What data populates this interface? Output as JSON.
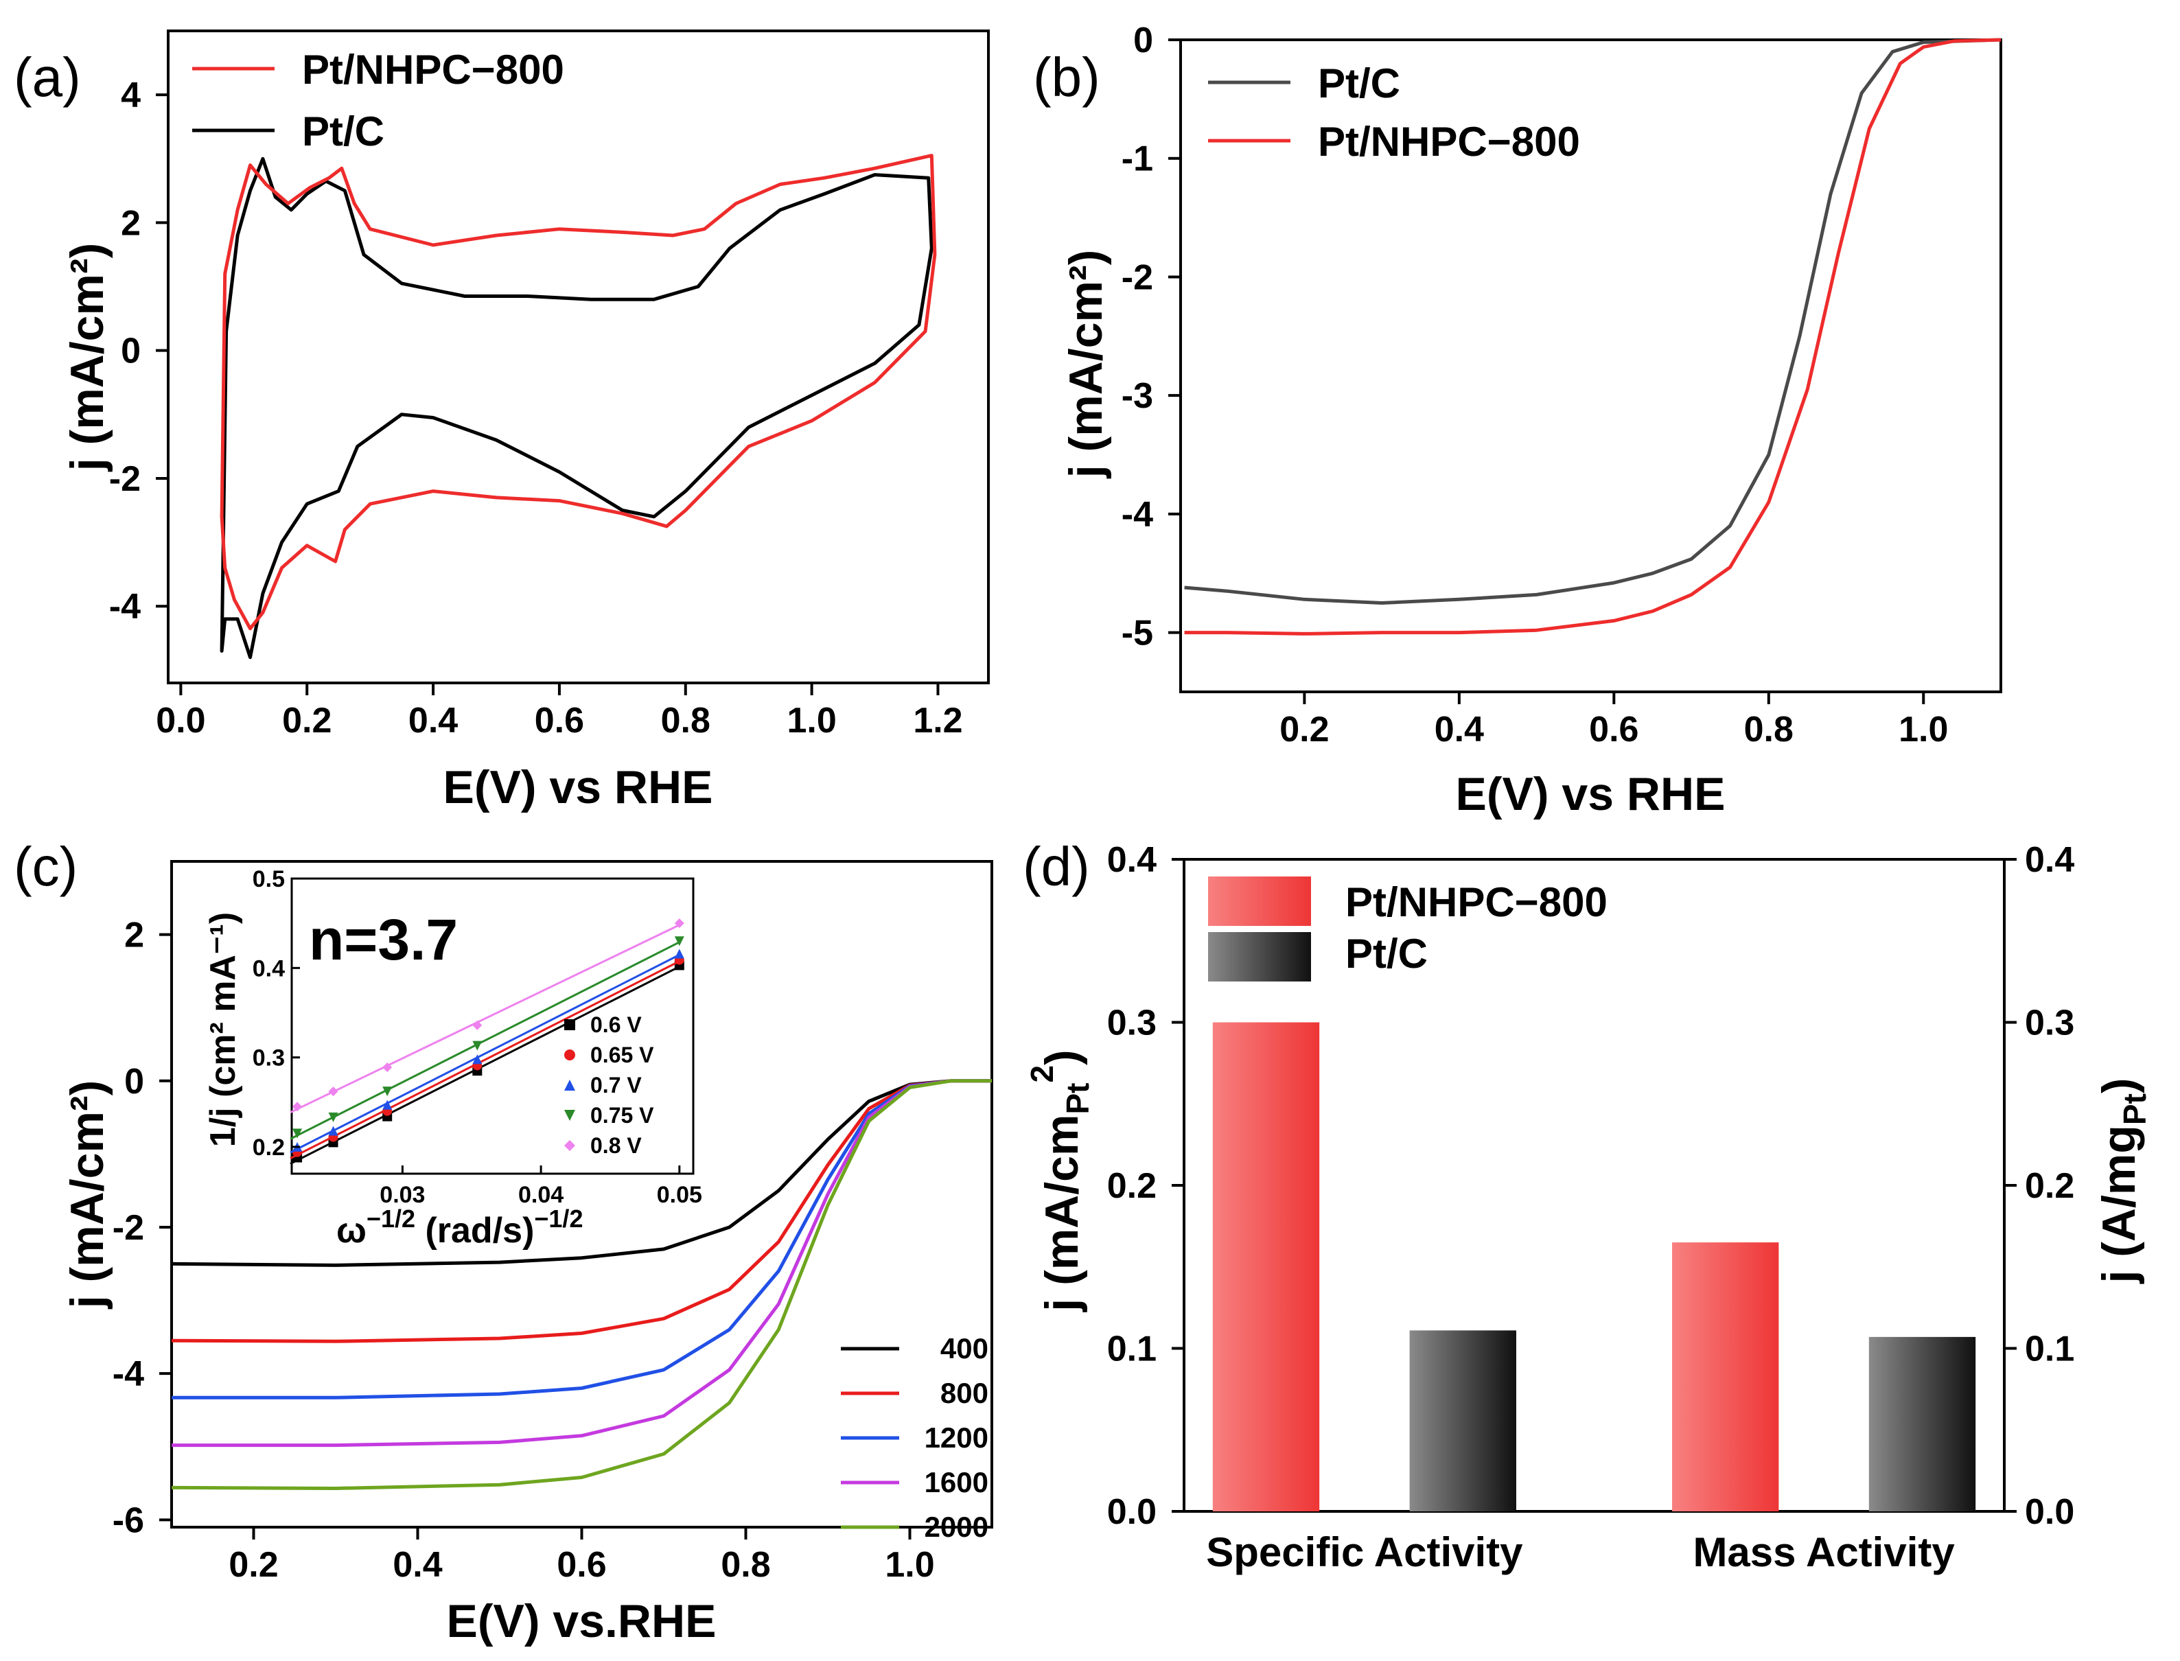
{
  "figure": {
    "panels": [
      "(a)",
      "(b)",
      "(c)",
      "(d)"
    ]
  },
  "chart_data": [
    {
      "id": "a",
      "type": "line",
      "panel_label": "(a)",
      "xlabel": "E(V) vs RHE",
      "ylabel": "j (mA/cm²)",
      "xlim": [
        -0.02,
        1.28
      ],
      "ylim": [
        -5.2,
        5.0
      ],
      "xticks": [
        0.0,
        0.2,
        0.4,
        0.6,
        0.8,
        1.0,
        1.2
      ],
      "xtick_labels": [
        "0.0",
        "0.2",
        "0.4",
        "0.6",
        "0.8",
        "1.0",
        "1.2"
      ],
      "yticks": [
        -4,
        -2,
        0,
        2,
        4
      ],
      "ytick_labels": [
        "-4",
        "-2",
        "0",
        "2",
        "4"
      ],
      "legend": [
        "Pt/NHPC−800",
        "Pt/C"
      ],
      "series": [
        {
          "name": "Pt/NHPC−800",
          "color": "#ee2c2c",
          "points": [
            [
              0.065,
              -2.6
            ],
            [
              0.07,
              1.2
            ],
            [
              0.09,
              2.2
            ],
            [
              0.11,
              2.9
            ],
            [
              0.135,
              2.6
            ],
            [
              0.17,
              2.3
            ],
            [
              0.205,
              2.55
            ],
            [
              0.235,
              2.7
            ],
            [
              0.255,
              2.85
            ],
            [
              0.275,
              2.3
            ],
            [
              0.3,
              1.9
            ],
            [
              0.4,
              1.65
            ],
            [
              0.5,
              1.8
            ],
            [
              0.6,
              1.9
            ],
            [
              0.7,
              1.85
            ],
            [
              0.78,
              1.8
            ],
            [
              0.83,
              1.9
            ],
            [
              0.88,
              2.3
            ],
            [
              0.95,
              2.6
            ],
            [
              1.02,
              2.7
            ],
            [
              1.1,
              2.85
            ],
            [
              1.19,
              3.05
            ],
            [
              1.195,
              1.5
            ],
            [
              1.18,
              0.3
            ],
            [
              1.1,
              -0.5
            ],
            [
              1.0,
              -1.1
            ],
            [
              0.9,
              -1.5
            ],
            [
              0.8,
              -2.5
            ],
            [
              0.77,
              -2.75
            ],
            [
              0.7,
              -2.55
            ],
            [
              0.6,
              -2.35
            ],
            [
              0.5,
              -2.3
            ],
            [
              0.4,
              -2.2
            ],
            [
              0.3,
              -2.4
            ],
            [
              0.26,
              -2.8
            ],
            [
              0.245,
              -3.3
            ],
            [
              0.2,
              -3.05
            ],
            [
              0.16,
              -3.4
            ],
            [
              0.13,
              -4.1
            ],
            [
              0.11,
              -4.35
            ],
            [
              0.085,
              -3.9
            ],
            [
              0.07,
              -3.4
            ]
          ]
        },
        {
          "name": "Pt/C",
          "color": "#000000",
          "points": [
            [
              0.065,
              -4.7
            ],
            [
              0.072,
              0.3
            ],
            [
              0.09,
              1.8
            ],
            [
              0.11,
              2.5
            ],
            [
              0.13,
              3.0
            ],
            [
              0.15,
              2.4
            ],
            [
              0.175,
              2.2
            ],
            [
              0.2,
              2.45
            ],
            [
              0.23,
              2.65
            ],
            [
              0.26,
              2.5
            ],
            [
              0.29,
              1.5
            ],
            [
              0.35,
              1.05
            ],
            [
              0.45,
              0.85
            ],
            [
              0.55,
              0.85
            ],
            [
              0.65,
              0.8
            ],
            [
              0.75,
              0.8
            ],
            [
              0.82,
              1.0
            ],
            [
              0.87,
              1.6
            ],
            [
              0.95,
              2.2
            ],
            [
              1.02,
              2.45
            ],
            [
              1.1,
              2.75
            ],
            [
              1.185,
              2.7
            ],
            [
              1.19,
              1.6
            ],
            [
              1.17,
              0.4
            ],
            [
              1.1,
              -0.2
            ],
            [
              1.0,
              -0.7
            ],
            [
              0.9,
              -1.2
            ],
            [
              0.8,
              -2.2
            ],
            [
              0.75,
              -2.6
            ],
            [
              0.7,
              -2.5
            ],
            [
              0.6,
              -1.9
            ],
            [
              0.5,
              -1.4
            ],
            [
              0.4,
              -1.05
            ],
            [
              0.35,
              -1.0
            ],
            [
              0.28,
              -1.5
            ],
            [
              0.25,
              -2.2
            ],
            [
              0.2,
              -2.4
            ],
            [
              0.16,
              -3.0
            ],
            [
              0.13,
              -3.8
            ],
            [
              0.11,
              -4.8
            ],
            [
              0.09,
              -4.2
            ],
            [
              0.07,
              -4.2
            ]
          ]
        }
      ]
    },
    {
      "id": "b",
      "type": "line",
      "panel_label": "(b)",
      "xlabel": "E(V) vs RHE",
      "ylabel": "j (mA/cm²)",
      "xlim": [
        0.04,
        1.1
      ],
      "ylim": [
        -5.5,
        0.0
      ],
      "xticks": [
        0.2,
        0.4,
        0.6,
        0.8,
        1.0
      ],
      "xtick_labels": [
        "0.2",
        "0.4",
        "0.6",
        "0.8",
        "1.0"
      ],
      "yticks": [
        0,
        -1,
        -2,
        -3,
        -4,
        -5
      ],
      "ytick_labels": [
        "0",
        "-1",
        "-2",
        "-3",
        "-4",
        "-5"
      ],
      "legend": [
        "Pt/C",
        "Pt/NHPC−800"
      ],
      "series": [
        {
          "name": "Pt/C",
          "color": "#4a4a4a",
          "points": [
            [
              0.045,
              -4.62
            ],
            [
              0.1,
              -4.65
            ],
            [
              0.2,
              -4.72
            ],
            [
              0.3,
              -4.75
            ],
            [
              0.4,
              -4.72
            ],
            [
              0.5,
              -4.68
            ],
            [
              0.6,
              -4.58
            ],
            [
              0.65,
              -4.5
            ],
            [
              0.7,
              -4.38
            ],
            [
              0.75,
              -4.1
            ],
            [
              0.8,
              -3.5
            ],
            [
              0.84,
              -2.5
            ],
            [
              0.88,
              -1.3
            ],
            [
              0.92,
              -0.45
            ],
            [
              0.96,
              -0.1
            ],
            [
              1.0,
              -0.02
            ],
            [
              1.1,
              0.0
            ]
          ]
        },
        {
          "name": "Pt/NHPC−800",
          "color": "#ee2c2c",
          "points": [
            [
              0.045,
              -5.0
            ],
            [
              0.1,
              -5.0
            ],
            [
              0.2,
              -5.01
            ],
            [
              0.3,
              -5.0
            ],
            [
              0.4,
              -5.0
            ],
            [
              0.5,
              -4.98
            ],
            [
              0.6,
              -4.9
            ],
            [
              0.65,
              -4.82
            ],
            [
              0.7,
              -4.68
            ],
            [
              0.75,
              -4.45
            ],
            [
              0.8,
              -3.9
            ],
            [
              0.85,
              -2.95
            ],
            [
              0.89,
              -1.8
            ],
            [
              0.93,
              -0.75
            ],
            [
              0.97,
              -0.2
            ],
            [
              1.0,
              -0.06
            ],
            [
              1.04,
              -0.01
            ],
            [
              1.1,
              0.0
            ]
          ]
        }
      ]
    },
    {
      "id": "c",
      "type": "line",
      "panel_label": "(c)",
      "xlabel": "E(V) vs.RHE",
      "ylabel": "j (mA/cm²)",
      "xlim": [
        0.1,
        1.1
      ],
      "ylim": [
        -6.1,
        3.0
      ],
      "xticks": [
        0.2,
        0.4,
        0.6,
        0.8,
        1.0
      ],
      "xtick_labels": [
        "0.2",
        "0.4",
        "0.6",
        "0.8",
        "1.0"
      ],
      "yticks": [
        2,
        0,
        -2,
        -4,
        -6
      ],
      "ytick_labels": [
        "2",
        "0",
        "-2",
        "-4",
        "-6"
      ],
      "legend": [
        "400",
        "800",
        "1200",
        "1600",
        "2000"
      ],
      "series": [
        {
          "name": "400",
          "color": "#000000",
          "points": [
            [
              0.1,
              -2.5
            ],
            [
              0.3,
              -2.52
            ],
            [
              0.5,
              -2.48
            ],
            [
              0.6,
              -2.42
            ],
            [
              0.7,
              -2.3
            ],
            [
              0.78,
              -2.0
            ],
            [
              0.84,
              -1.5
            ],
            [
              0.9,
              -0.8
            ],
            [
              0.95,
              -0.28
            ],
            [
              1.0,
              -0.05
            ],
            [
              1.05,
              0.0
            ],
            [
              1.1,
              0.0
            ]
          ]
        },
        {
          "name": "800",
          "color": "#e81c1c",
          "points": [
            [
              0.1,
              -3.55
            ],
            [
              0.3,
              -3.56
            ],
            [
              0.5,
              -3.52
            ],
            [
              0.6,
              -3.45
            ],
            [
              0.7,
              -3.25
            ],
            [
              0.78,
              -2.85
            ],
            [
              0.84,
              -2.2
            ],
            [
              0.9,
              -1.15
            ],
            [
              0.95,
              -0.38
            ],
            [
              1.0,
              -0.06
            ],
            [
              1.05,
              0.0
            ],
            [
              1.1,
              0.0
            ]
          ]
        },
        {
          "name": "1200",
          "color": "#2150e6",
          "points": [
            [
              0.1,
              -4.33
            ],
            [
              0.3,
              -4.33
            ],
            [
              0.5,
              -4.28
            ],
            [
              0.6,
              -4.2
            ],
            [
              0.7,
              -3.95
            ],
            [
              0.78,
              -3.4
            ],
            [
              0.84,
              -2.6
            ],
            [
              0.9,
              -1.35
            ],
            [
              0.95,
              -0.45
            ],
            [
              1.0,
              -0.07
            ],
            [
              1.05,
              0.0
            ],
            [
              1.1,
              0.0
            ]
          ]
        },
        {
          "name": "1600",
          "color": "#c43adf",
          "points": [
            [
              0.1,
              -4.98
            ],
            [
              0.3,
              -4.98
            ],
            [
              0.5,
              -4.94
            ],
            [
              0.6,
              -4.85
            ],
            [
              0.7,
              -4.58
            ],
            [
              0.78,
              -3.95
            ],
            [
              0.84,
              -3.05
            ],
            [
              0.9,
              -1.55
            ],
            [
              0.95,
              -0.5
            ],
            [
              1.0,
              -0.08
            ],
            [
              1.05,
              0.0
            ],
            [
              1.1,
              0.0
            ]
          ]
        },
        {
          "name": "2000",
          "color": "#6ea51f",
          "points": [
            [
              0.1,
              -5.56
            ],
            [
              0.3,
              -5.57
            ],
            [
              0.5,
              -5.52
            ],
            [
              0.6,
              -5.42
            ],
            [
              0.7,
              -5.1
            ],
            [
              0.78,
              -4.4
            ],
            [
              0.84,
              -3.4
            ],
            [
              0.9,
              -1.7
            ],
            [
              0.95,
              -0.55
            ],
            [
              1.0,
              -0.09
            ],
            [
              1.05,
              0.0
            ],
            [
              1.1,
              0.0
            ]
          ]
        }
      ],
      "inset": {
        "type": "scatter",
        "annotation": "n=3.7",
        "xlabel": "ω⁻¹ᐟ² (rad/s)⁻¹ᐟ²",
        "xlabel_main": "ω",
        "xlabel_sup1": "−1/2",
        "xlabel_mid": " (rad/s)",
        "xlabel_sup2": "−1/2",
        "ylabel": "1/j (cm² mA⁻¹)",
        "xlim": [
          0.022,
          0.051
        ],
        "ylim": [
          0.17,
          0.5
        ],
        "xticks": [
          0.03,
          0.04,
          0.05
        ],
        "xtick_labels": [
          "0.03",
          "0.04",
          "0.05"
        ],
        "yticks": [
          0.2,
          0.3,
          0.4,
          0.5
        ],
        "ytick_labels": [
          "0.2",
          "0.3",
          "0.4",
          "0.5"
        ],
        "x": [
          0.0224,
          0.025,
          0.0289,
          0.0354,
          0.05
        ],
        "series": [
          {
            "name": "0.6 V",
            "color": "#000000",
            "marker": "square",
            "values": [
              0.188,
              0.205,
              0.234,
              0.285,
              0.403
            ]
          },
          {
            "name": "0.65 V",
            "color": "#e81c1c",
            "marker": "circle",
            "values": [
              0.194,
              0.211,
              0.24,
              0.291,
              0.409
            ]
          },
          {
            "name": "0.7 V",
            "color": "#2150e6",
            "marker": "triangle-up",
            "values": [
              0.2,
              0.218,
              0.247,
              0.298,
              0.416
            ]
          },
          {
            "name": "0.75 V",
            "color": "#2a8a2a",
            "marker": "triangle-down",
            "values": [
              0.215,
              0.233,
              0.262,
              0.313,
              0.43
            ]
          },
          {
            "name": "0.8 V",
            "color": "#ee82ee",
            "marker": "diamond",
            "values": [
              0.245,
              0.262,
              0.289,
              0.336,
              0.45
            ]
          }
        ]
      }
    },
    {
      "id": "d",
      "type": "bar",
      "panel_label": "(d)",
      "categories": [
        "Specific Activity",
        "Mass Activity"
      ],
      "ylabel_left": "j (mA/cm",
      "ylabel_left_sub": "Pt",
      "ylabel_left_sup": "2",
      "ylabel_left_end": ")",
      "ylabel_right": "j (A/mg",
      "ylabel_right_sub": "Pt",
      "ylabel_right_end": ")",
      "ylim": [
        0.0,
        0.4
      ],
      "yticks": [
        0.0,
        0.1,
        0.2,
        0.3,
        0.4
      ],
      "ytick_labels": [
        "0.0",
        "0.1",
        "0.2",
        "0.3",
        "0.4"
      ],
      "legend": [
        "Pt/NHPC−800",
        "Pt/C"
      ],
      "series": [
        {
          "name": "Pt/NHPC−800",
          "color": "#f04040",
          "values": [
            0.3,
            0.165
          ]
        },
        {
          "name": "Pt/C",
          "color": "#2a2a2a",
          "values": [
            0.111,
            0.107
          ]
        }
      ]
    }
  ]
}
